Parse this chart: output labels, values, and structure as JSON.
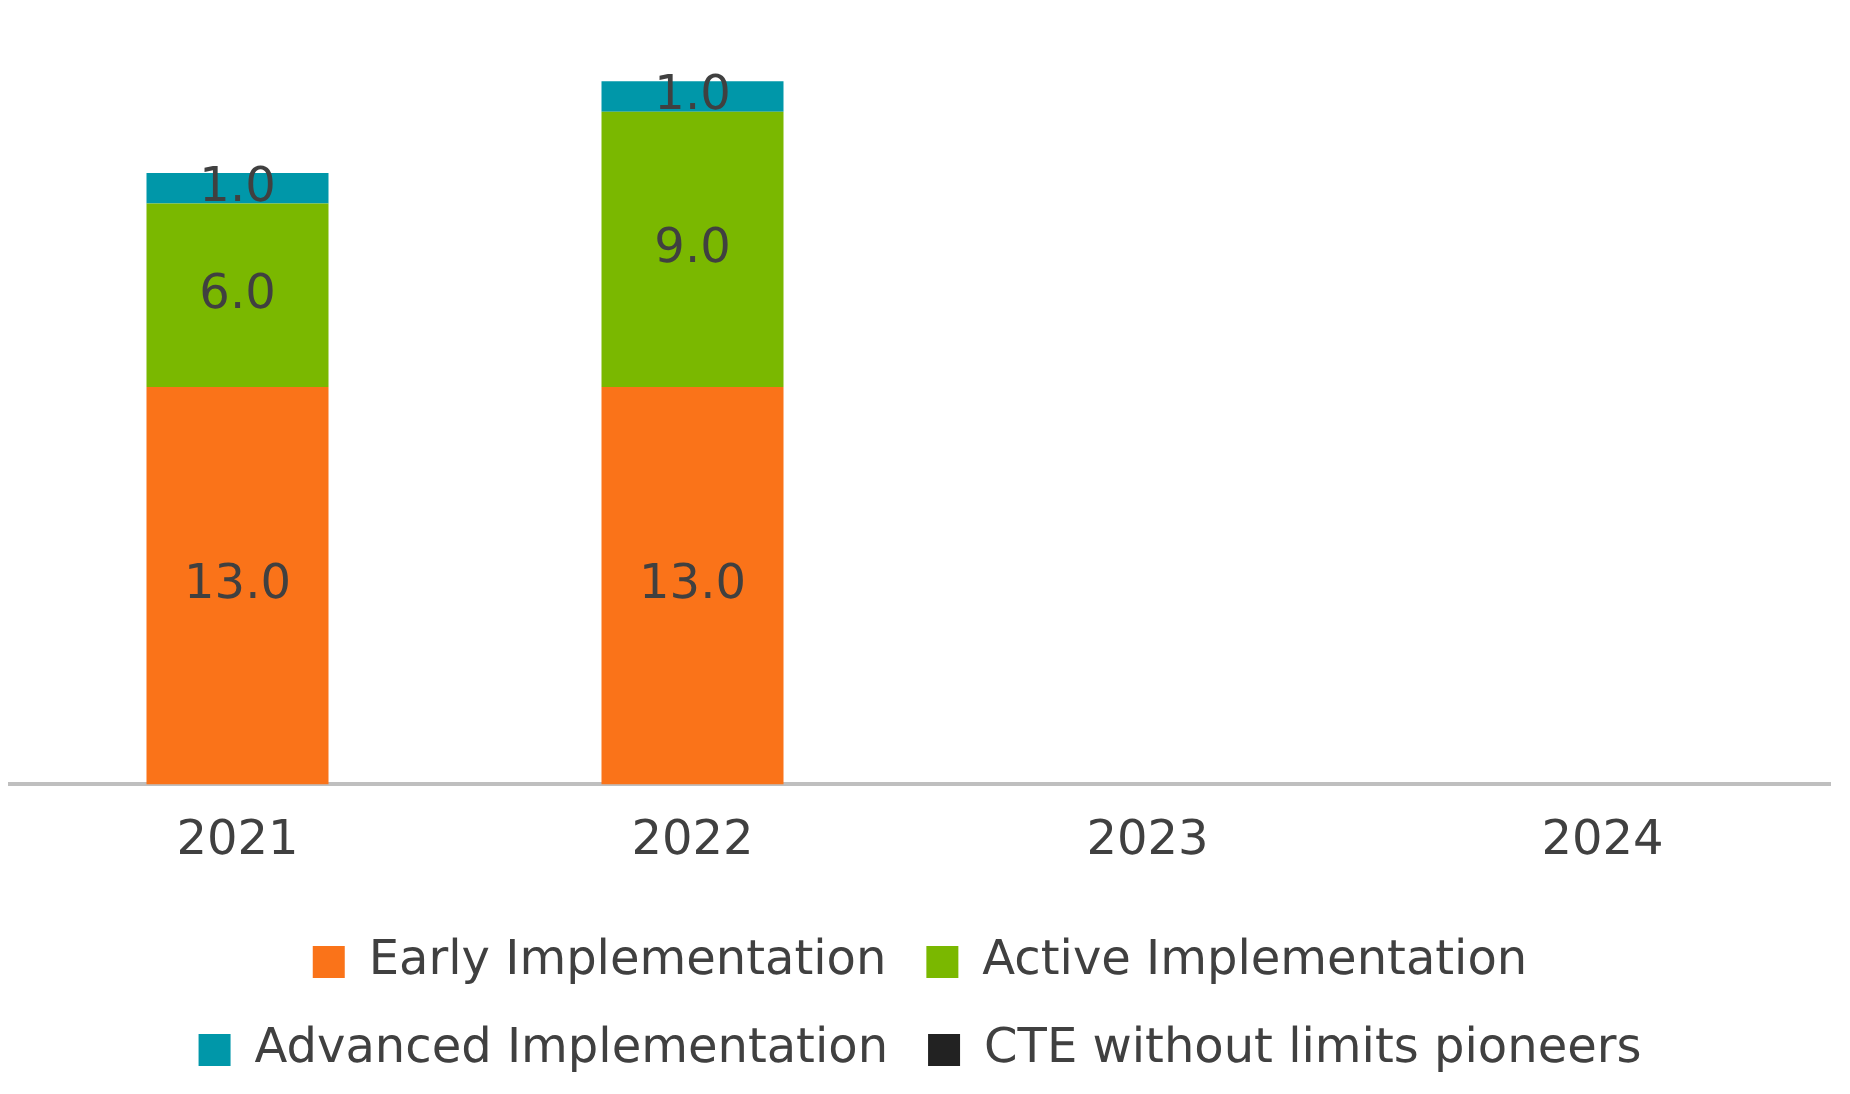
{
  "chart_data": {
    "type": "bar",
    "stacked": true,
    "categories": [
      "2021",
      "2022",
      "2023",
      "2024"
    ],
    "series": [
      {
        "name": "Early Implementation",
        "color": "#fa7319",
        "values": [
          13,
          13,
          null,
          null
        ],
        "value_labels": [
          "13.0",
          "13.0",
          null,
          null
        ]
      },
      {
        "name": "Active Implementation",
        "color": "#7ab800",
        "values": [
          6,
          9,
          null,
          null
        ],
        "value_labels": [
          "6.0",
          "9.0",
          null,
          null
        ]
      },
      {
        "name": "Advanced Implementation",
        "color": "#0097a9",
        "values": [
          1,
          1,
          null,
          null
        ],
        "value_labels": [
          "1.0",
          "1.0",
          null,
          null
        ]
      },
      {
        "name": "CTE without limits pioneers",
        "color": "#222222",
        "values": [
          null,
          null,
          null,
          null
        ]
      }
    ],
    "tick_labels": "x",
    "grid": false,
    "legend": "bottom"
  }
}
